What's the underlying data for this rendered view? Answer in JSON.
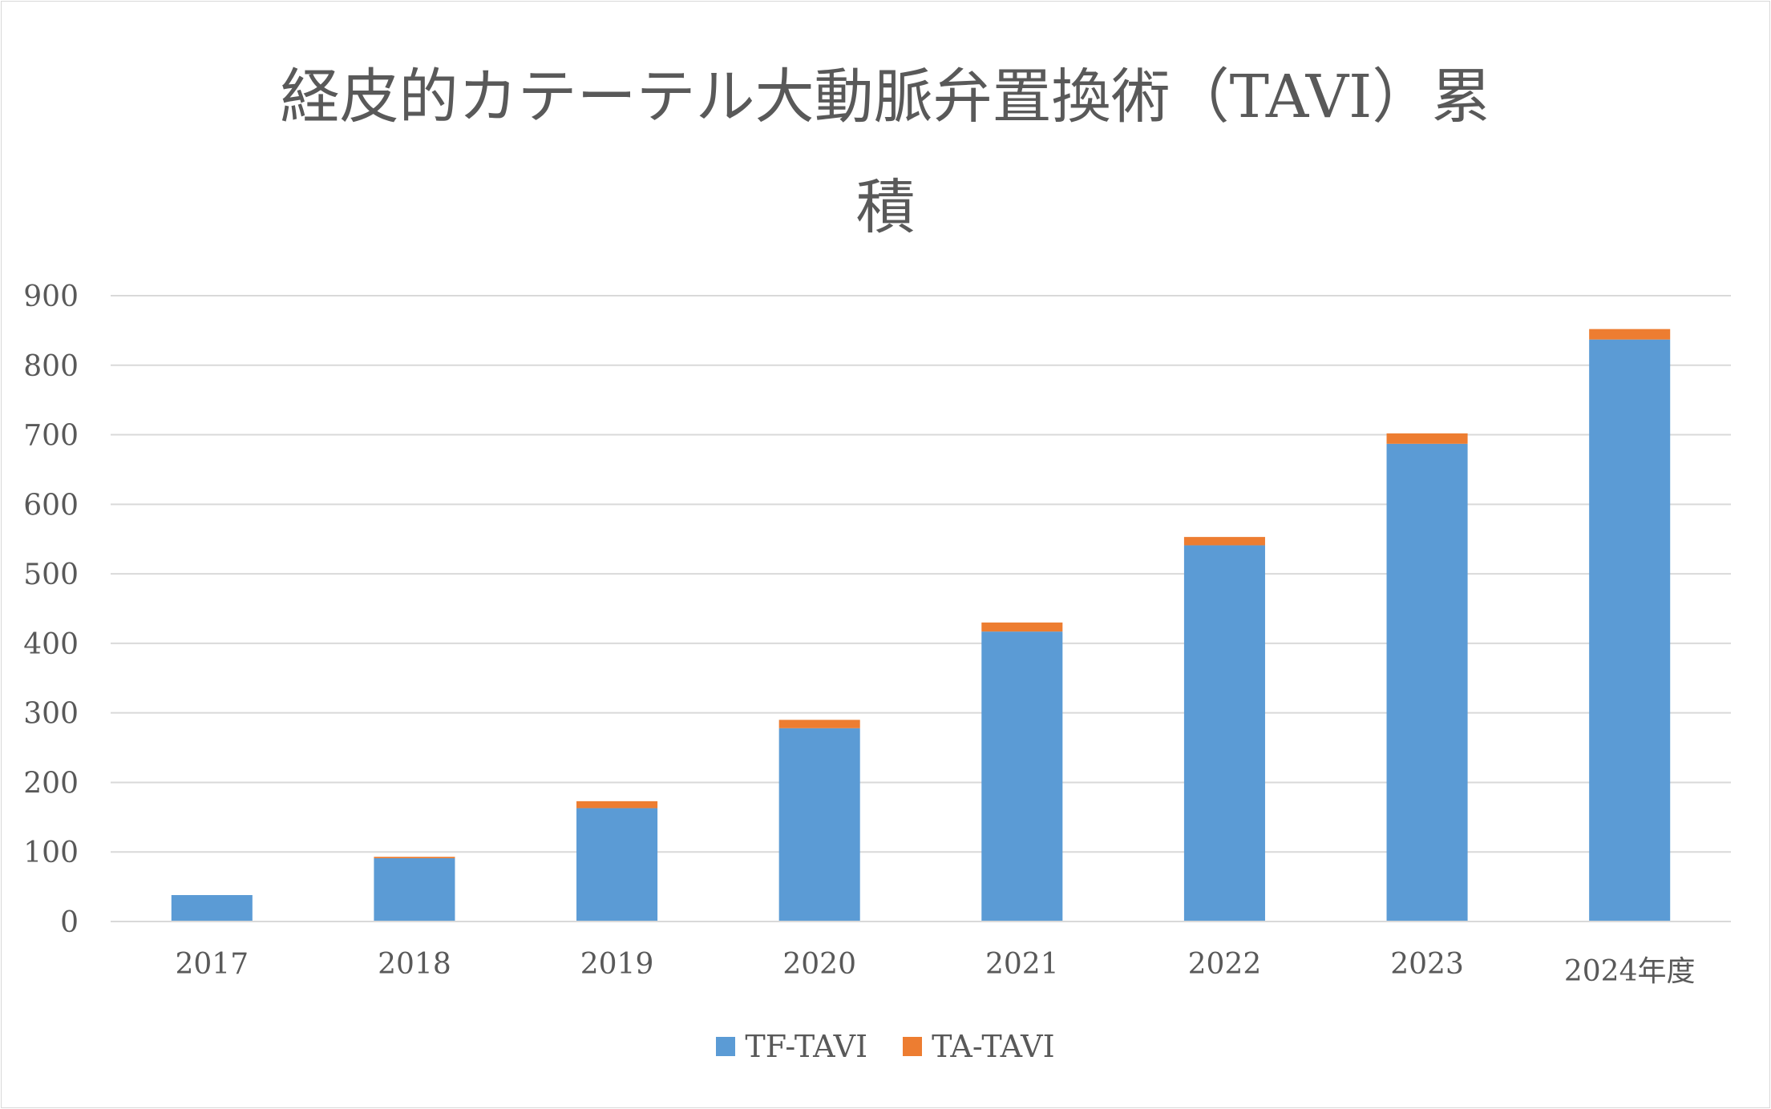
{
  "chart_data": {
    "type": "bar",
    "stacked": true,
    "title": "経皮的カテーテル大動脈弁置換術（TAVI）累積",
    "title_lines": [
      "経皮的カテーテル大動脈弁置換術（TAVI）累",
      "積"
    ],
    "categories": [
      "2017",
      "2018",
      "2019",
      "2020",
      "2021",
      "2022",
      "2023",
      "2024年度"
    ],
    "series": [
      {
        "name": "TF-TAVI",
        "color": "#5b9bd5",
        "values": [
          38,
          91,
          163,
          278,
          417,
          541,
          687,
          837
        ]
      },
      {
        "name": "TA-TAVI",
        "color": "#ed7d31",
        "values": [
          0,
          2,
          10,
          12,
          13,
          12,
          15,
          15
        ]
      }
    ],
    "xlabel": "",
    "ylabel": "",
    "ylim": [
      0,
      900
    ],
    "yticks": [
      0,
      100,
      200,
      300,
      400,
      500,
      600,
      700,
      800,
      900
    ],
    "grid": true,
    "legend_position": "bottom"
  }
}
